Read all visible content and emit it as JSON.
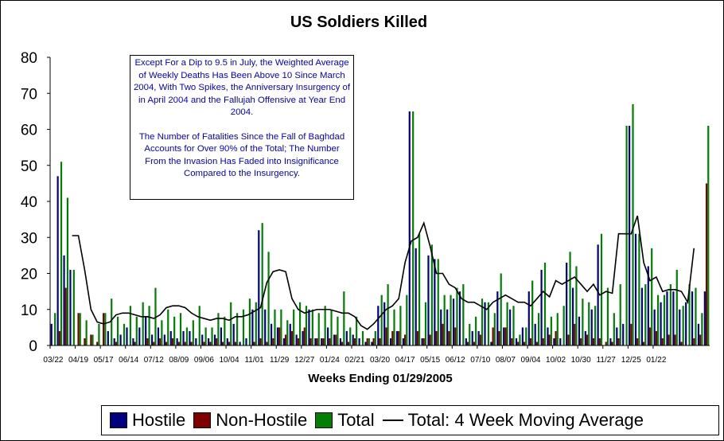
{
  "chart_data": {
    "type": "bar",
    "title": "US Soldiers Killed",
    "xlabel": "Weeks Ending 01/29/2005",
    "ylabel": "",
    "ylim": [
      0,
      80
    ],
    "yticks": [
      0,
      10,
      20,
      30,
      40,
      50,
      60,
      70,
      80
    ],
    "grid": false,
    "legend_position": "bottom",
    "x_tick_labels": [
      "03/22",
      "04/19",
      "05/17",
      "06/14",
      "07/12",
      "08/09",
      "09/06",
      "10/04",
      "11/01",
      "11/29",
      "12/27",
      "01/24",
      "02/21",
      "03/20",
      "04/17",
      "05/15",
      "06/12",
      "07/10",
      "08/07",
      "09/04",
      "10/02",
      "10/30",
      "11/27",
      "12/25",
      "01/22"
    ],
    "x_tick_every": 4,
    "series": [
      {
        "name": "Hostile",
        "color": "#000080",
        "values": [
          6,
          47,
          25,
          21,
          0,
          0,
          0,
          0,
          0,
          4,
          2,
          3,
          5,
          2,
          5,
          8,
          3,
          5,
          3,
          4,
          2,
          4,
          4,
          2,
          3,
          2,
          3,
          5,
          2,
          6,
          1,
          2,
          10,
          32,
          10,
          6,
          5,
          2,
          6,
          3,
          4,
          10,
          2,
          2,
          5,
          3,
          2,
          4,
          3,
          2,
          1,
          1,
          11,
          12,
          2,
          4,
          2,
          65,
          27,
          2,
          25,
          24,
          10,
          10,
          13,
          15,
          2,
          4,
          4,
          12,
          1,
          15,
          5,
          10,
          2,
          5,
          15,
          6,
          21,
          5,
          2,
          2,
          23,
          16,
          8,
          4,
          10,
          28,
          0,
          2,
          5,
          6,
          61,
          31,
          16,
          22,
          10,
          12,
          15,
          15,
          10,
          12,
          15,
          6,
          15
        ]
      },
      {
        "name": "Non-Hostile",
        "color": "#800000",
        "values": [
          0,
          4,
          16,
          0,
          9,
          2,
          3,
          1,
          9,
          0,
          1,
          0,
          0,
          1,
          0,
          2,
          1,
          2,
          1,
          2,
          1,
          1,
          1,
          0,
          1,
          1,
          2,
          1,
          1,
          1,
          0,
          0,
          1,
          2,
          1,
          2,
          5,
          3,
          4,
          2,
          5,
          2,
          2,
          2,
          2,
          3,
          1,
          1,
          2,
          0,
          2,
          2,
          2,
          5,
          4,
          4,
          3,
          0,
          4,
          2,
          3,
          4,
          6,
          4,
          5,
          0,
          1,
          1,
          3,
          0,
          5,
          4,
          5,
          2,
          1,
          1,
          2,
          1,
          2,
          3,
          4,
          0,
          3,
          6,
          2,
          3,
          2,
          2,
          1,
          1,
          2,
          0,
          6,
          2,
          1,
          5,
          4,
          2,
          3,
          3,
          1,
          0,
          2,
          3,
          45
        ]
      },
      {
        "name": "Total",
        "color": "#008000",
        "values": [
          9,
          51,
          41,
          21,
          9,
          7,
          3,
          6,
          9,
          13,
          8,
          6,
          11,
          8,
          12,
          11,
          16,
          7,
          10,
          8,
          9,
          5,
          7,
          11,
          5,
          5,
          9,
          8,
          12,
          9,
          10,
          13,
          12,
          34,
          26,
          10,
          10,
          7,
          10,
          12,
          11,
          10,
          9,
          11,
          10,
          8,
          15,
          5,
          8,
          4,
          2,
          4,
          14,
          17,
          10,
          11,
          14,
          65,
          31,
          12,
          28,
          24,
          14,
          14,
          16,
          17,
          6,
          8,
          13,
          12,
          9,
          20,
          12,
          11,
          3,
          5,
          18,
          9,
          23,
          8,
          9,
          11,
          26,
          22,
          13,
          12,
          11,
          31,
          16,
          9,
          17,
          61,
          67,
          31,
          17,
          27,
          14,
          14,
          17,
          21,
          11,
          17,
          16,
          9,
          61
        ]
      },
      {
        "name": "Total: 4 Week Moving Average",
        "type": "line",
        "start_index": 3,
        "values": [
          30.5,
          30.5,
          21,
          10,
          6.5,
          6,
          6.5,
          8.5,
          9,
          9,
          8.5,
          8,
          8,
          7.5,
          8.5,
          10.5,
          11,
          11,
          10.5,
          9,
          8,
          7.5,
          7,
          7.5,
          7.5,
          7,
          8,
          8,
          8.5,
          9.5,
          10.5,
          17.5,
          20.5,
          21,
          20.5,
          13,
          10,
          9,
          9.5,
          10,
          10,
          10,
          9.5,
          9,
          9,
          8,
          5.5,
          4.5,
          6,
          8,
          10,
          11,
          13,
          23,
          29,
          30,
          34,
          27.5,
          20,
          20,
          17,
          16,
          13,
          12,
          12,
          11,
          10,
          12,
          13,
          14,
          13,
          12,
          12,
          11,
          13,
          15,
          13.5,
          18,
          17,
          18,
          19,
          17,
          15,
          17,
          14,
          15,
          14.5,
          31,
          31,
          31,
          36,
          23,
          18,
          19,
          15,
          15.5,
          15.5,
          15,
          12,
          27
        ]
      }
    ]
  },
  "annotation": {
    "paragraph1": "Except For a Dip to 9.5 in July, the Weighted Average of Weekly Deaths Has Been Above 10 Since March 2004, With Two Spikes, the Anniversary Insurgency of in April 2004 and the Fallujah Offensive at Year End 2004.",
    "paragraph2": "The Number of Fatalities Since the Fall of Baghdad Accounts for Over 90% of the Total; The Number From the Invasion Has Faded into Insignificance Compared to the Insurgency."
  },
  "legend": {
    "hostile": "Hostile",
    "non_hostile": "Non-Hostile",
    "total": "Total",
    "moving_average": "Total: 4 Week Moving Average"
  }
}
